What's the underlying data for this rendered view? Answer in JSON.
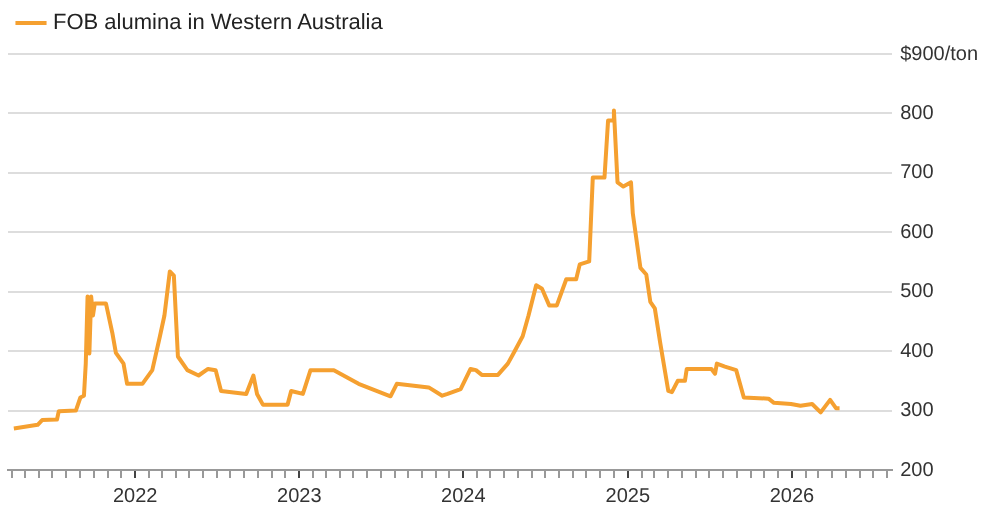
{
  "chart_data": {
    "type": "line",
    "legend": "top left",
    "grid": "y",
    "marker": "none",
    "line_style": "solid",
    "xlim": [
      "2021-03-24",
      "2026-08-12"
    ],
    "xticks": [
      {
        "value": "2021-04",
        "label": null
      },
      {
        "value": "2021-05",
        "label": null
      },
      {
        "value": "2021-06",
        "label": null
      },
      {
        "value": "2021-07",
        "label": null
      },
      {
        "value": "2021-08",
        "label": null
      },
      {
        "value": "2021-09",
        "label": null
      },
      {
        "value": "2021-10",
        "label": null
      },
      {
        "value": "2021-11",
        "label": null
      },
      {
        "value": "2021-12",
        "label": null
      },
      "2022",
      {
        "value": "2022-02",
        "label": null
      },
      {
        "value": "2022-03",
        "label": null
      },
      {
        "value": "2022-04",
        "label": null
      },
      {
        "value": "2022-05",
        "label": null
      },
      {
        "value": "2022-06",
        "label": null
      },
      {
        "value": "2022-07",
        "label": null
      },
      {
        "value": "2022-08",
        "label": null
      },
      {
        "value": "2022-09",
        "label": null
      },
      {
        "value": "2022-10",
        "label": null
      },
      {
        "value": "2022-11",
        "label": null
      },
      {
        "value": "2022-12",
        "label": null
      },
      "2023",
      {
        "value": "2023-02",
        "label": null
      },
      {
        "value": "2023-03",
        "label": null
      },
      {
        "value": "2023-04",
        "label": null
      },
      {
        "value": "2023-05",
        "label": null
      },
      {
        "value": "2023-06",
        "label": null
      },
      {
        "value": "2023-07",
        "label": null
      },
      {
        "value": "2023-08",
        "label": null
      },
      {
        "value": "2023-09",
        "label": null
      },
      {
        "value": "2023-10",
        "label": null
      },
      {
        "value": "2023-11",
        "label": null
      },
      {
        "value": "2023-12",
        "label": null
      },
      "2024",
      {
        "value": "2024-02",
        "label": null
      },
      {
        "value": "2024-03",
        "label": null
      },
      {
        "value": "2024-04",
        "label": null
      },
      {
        "value": "2024-05",
        "label": null
      },
      {
        "value": "2024-06",
        "label": null
      },
      {
        "value": "2024-07",
        "label": null
      },
      {
        "value": "2024-08",
        "label": null
      },
      {
        "value": "2024-09",
        "label": null
      },
      {
        "value": "2024-10",
        "label": null
      },
      {
        "value": "2024-11",
        "label": null
      },
      {
        "value": "2024-12",
        "label": null
      },
      "2025",
      {
        "value": "2025-02",
        "label": null
      },
      {
        "value": "2025-03",
        "label": null
      },
      {
        "value": "2025-04",
        "label": null
      },
      {
        "value": "2025-05",
        "label": null
      },
      {
        "value": "2025-06",
        "label": null
      },
      {
        "value": "2025-07",
        "label": null
      },
      {
        "value": "2025-08",
        "label": null
      },
      {
        "value": "2025-09",
        "label": null
      },
      {
        "value": "2025-10",
        "label": null
      },
      {
        "value": "2025-11",
        "label": null
      },
      {
        "value": "2025-12",
        "label": null
      },
      "2026",
      {
        "value": "2026-02",
        "label": null
      },
      {
        "value": "2026-03",
        "label": null
      },
      {
        "value": "2026-04",
        "label": null
      },
      {
        "value": "2026-05",
        "label": null
      },
      {
        "value": "2026-06",
        "label": null
      },
      {
        "value": "2026-07",
        "label": null
      },
      {
        "value": "2026-08",
        "label": null
      }
    ],
    "ylim": [
      200,
      900
    ],
    "yticks": [
      200,
      300,
      400,
      500,
      600,
      700,
      800,
      {
        "value": 900,
        "label": "$900/ton"
      }
    ],
    "series": [
      {
        "name": "FOB alumina in Western Australia",
        "color": "#f5a030",
        "x": [
          "2021-04-06",
          "2021-05-29",
          "2021-06-08",
          "2021-07-11",
          "2021-07-15",
          "2021-08-22",
          "2021-09-01",
          "2021-09-09",
          "2021-09-13",
          "2021-09-17",
          "2021-09-21",
          "2021-09-25",
          "2021-09-29",
          "2021-10-03",
          "2021-10-28",
          "2021-11-11",
          "2021-11-19",
          "2021-12-06",
          "2021-12-14",
          "2022-01-17",
          "2022-02-08",
          "2022-02-25",
          "2022-03-07",
          "2022-03-19",
          "2022-03-28",
          "2022-04-06",
          "2022-04-27",
          "2022-05-22",
          "2022-06-12",
          "2022-06-29",
          "2022-07-11",
          "2022-09-05",
          "2022-09-21",
          "2022-09-29",
          "2022-10-12",
          "2022-12-06",
          "2022-12-14",
          "2023-01-09",
          "2023-01-26",
          "2023-03-19",
          "2023-05-13",
          "2023-07-23",
          "2023-08-06",
          "2023-10-16",
          "2023-11-15",
          "2023-11-27",
          "2023-12-26",
          "2024-01-17",
          "2024-01-29",
          "2024-02-11",
          "2024-03-18",
          "2024-04-09",
          "2024-04-22",
          "2024-05-12",
          "2024-05-25",
          "2024-06-11",
          "2024-06-24",
          "2024-07-10",
          "2024-07-27",
          "2024-08-17",
          "2024-09-08",
          "2024-09-16",
          "2024-10-07",
          "2024-10-15",
          "2024-11-10",
          "2024-11-18",
          "2024-11-27",
          "2024-12-01",
          "2024-12-09",
          "2024-12-22",
          "2025-01-08",
          "2025-01-12",
          "2025-01-29",
          "2025-02-11",
          "2025-02-20",
          "2025-03-02",
          "2025-03-14",
          "2025-04-01",
          "2025-04-09",
          "2025-04-22",
          "2025-05-08",
          "2025-05-12",
          "2025-07-06",
          "2025-07-14",
          "2025-07-18",
          "2025-08-05",
          "2025-08-30",
          "2025-09-16",
          "2025-11-10",
          "2025-11-22",
          "2025-12-30",
          "2026-01-20",
          "2026-02-15",
          "2026-03-06",
          "2026-03-27",
          "2026-04-09",
          "2026-04-17"
        ],
        "values": [
          270,
          276,
          284,
          285,
          299,
          300,
          322,
          325,
          379,
          492,
          396,
          492,
          460,
          480,
          480,
          431,
          397,
          379,
          345,
          345,
          368,
          425,
          460,
          534,
          527,
          391,
          368,
          359,
          370,
          368,
          333,
          328,
          359,
          328,
          310,
          310,
          333,
          328,
          368,
          368,
          345,
          324,
          345,
          339,
          325,
          328,
          336,
          370,
          368,
          360,
          360,
          379,
          397,
          425,
          460,
          511,
          505,
          477,
          477,
          521,
          521,
          546,
          551,
          692,
          692,
          788,
          788,
          805,
          684,
          677,
          684,
          632,
          540,
          529,
          483,
          472,
          414,
          333,
          331,
          350,
          350,
          370,
          370,
          362,
          379,
          374,
          368,
          322,
          320,
          313,
          311,
          308,
          311,
          297,
          318,
          304,
          304
        ]
      }
    ]
  }
}
